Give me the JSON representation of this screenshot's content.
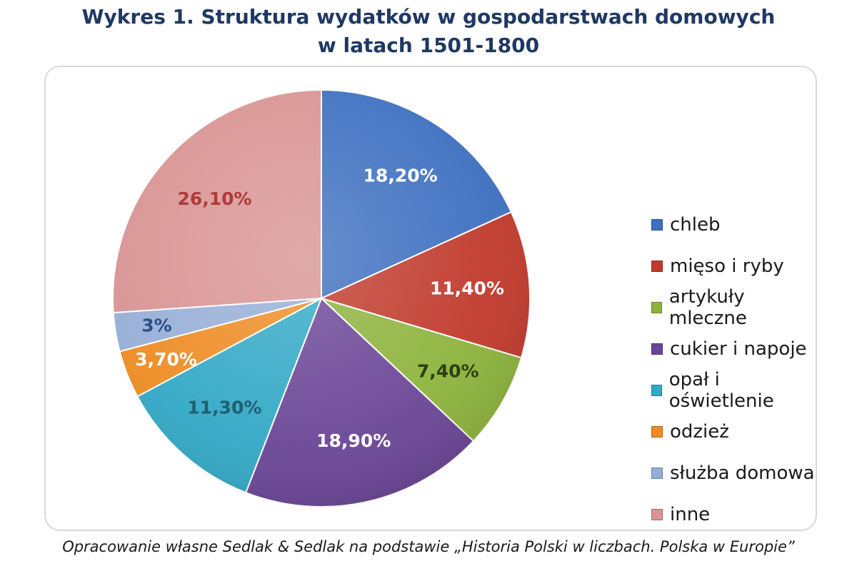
{
  "chart_data": {
    "type": "pie",
    "title": "Wykres 1. Struktura wydatków w gospodarstwach domowych",
    "subtitle": "w latach 1501-1800",
    "legend_position": "right",
    "slices": [
      {
        "label": "chleb",
        "value": 18.2,
        "display": "18,20%",
        "color": "#3d6fc0",
        "label_color": "#ffffff"
      },
      {
        "label": "mięso i ryby",
        "value": 11.4,
        "display": "11,40%",
        "color": "#c0392b",
        "label_color": "#ffffff"
      },
      {
        "label": "artykuły mleczne",
        "value": 7.4,
        "display": "7,40%",
        "color": "#8db33c",
        "label_color": "#2e3f10"
      },
      {
        "label": "cukier i napoje",
        "value": 18.9,
        "display": "18,90%",
        "color": "#6a4596",
        "label_color": "#ffffff"
      },
      {
        "label": "opał i oświetlenie",
        "value": 11.3,
        "display": "11,30%",
        "color": "#32a8c6",
        "label_color": "#1f5f73"
      },
      {
        "label": "odzież",
        "value": 3.7,
        "display": "3,70%",
        "color": "#ee8b22",
        "label_color": "#ffffff"
      },
      {
        "label": "służba domowa",
        "value": 3.0,
        "display": "3%",
        "color": "#96aed6",
        "label_color": "#2b4f8a"
      },
      {
        "label": "inne",
        "value": 26.1,
        "display": "26,10%",
        "color": "#d89392",
        "label_color": "#b13a36"
      }
    ]
  },
  "source": "Opracowanie własne Sedlak & Sedlak na podstawie „Historia  Polski w liczbach. Polska w Europie”"
}
